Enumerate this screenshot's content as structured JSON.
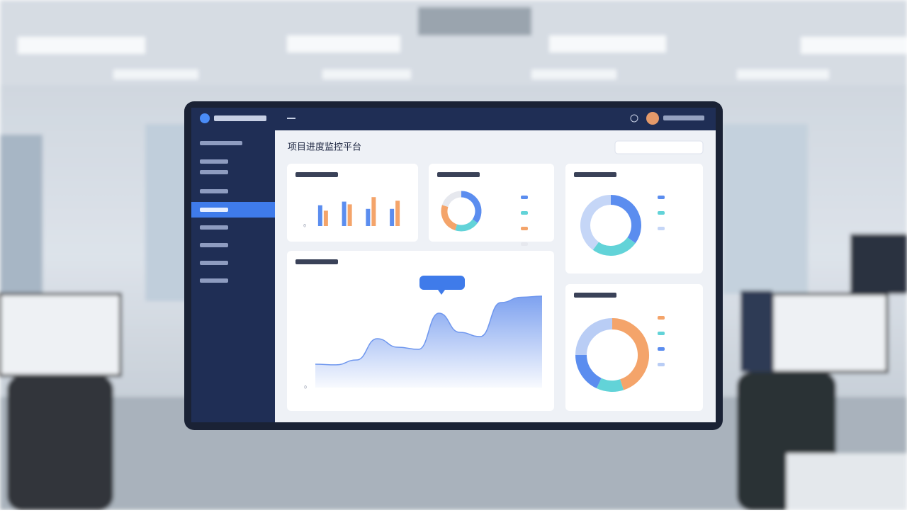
{
  "header": {
    "title": "项目进度监控平台"
  },
  "chart_data": [
    {
      "type": "bar",
      "ylim": [
        0,
        4
      ],
      "yticks": [
        0
      ],
      "series": [
        {
          "color": "#5b8def",
          "values": [
            2.3,
            2.7,
            1.9,
            1.9
          ]
        },
        {
          "color": "#f4a46a",
          "values": [
            1.7,
            2.4,
            3.2,
            2.8
          ]
        }
      ]
    },
    {
      "type": "pie",
      "values": [
        35,
        20,
        25,
        20
      ],
      "colors": [
        "#5b8def",
        "#62d3d8",
        "#f4a46a",
        "#e6e8ee"
      ]
    },
    {
      "type": "pie",
      "values": [
        35,
        25,
        40
      ],
      "colors": [
        "#5b8def",
        "#62d3d8",
        "#c5d6f7"
      ]
    },
    {
      "type": "line",
      "ylim": [
        0,
        5
      ],
      "yticks": [
        0
      ],
      "color": "#6f97ee",
      "values": [
        1.1,
        1.07,
        1.3,
        2.3,
        1.9,
        1.8,
        3.5,
        2.6,
        2.4,
        4.0,
        4.25,
        4.3
      ]
    },
    {
      "type": "pie",
      "values": [
        45,
        12,
        18,
        25
      ],
      "colors": [
        "#f4a46a",
        "#62d3d8",
        "#5b8def",
        "#b9cdf5"
      ]
    }
  ]
}
